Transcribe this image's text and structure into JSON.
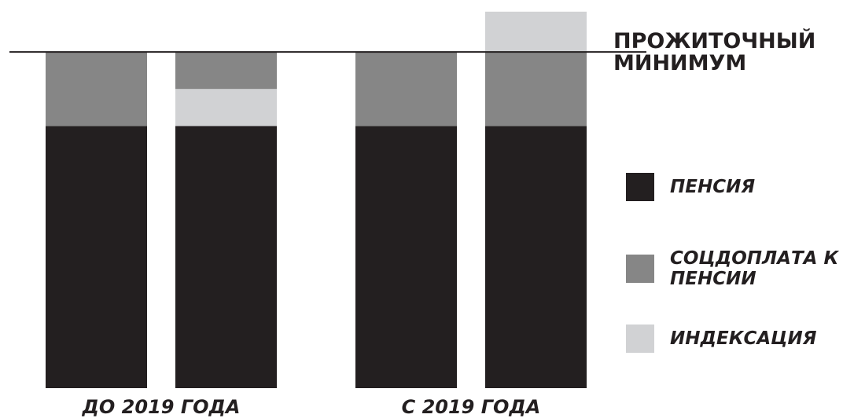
{
  "chart_data": {
    "type": "stacked-bar",
    "categories": [
      "ДО 2019 ГОДА",
      "С 2019 ГОДА"
    ],
    "series": [
      {
        "name": "ПЕНСИЯ",
        "color": "#231f20",
        "values": [
          [
            78,
            78
          ],
          [
            78,
            78
          ]
        ]
      },
      {
        "name": "СОЦДОПЛАТА К ПЕНСИИ",
        "color": "#868686",
        "values": [
          [
            22,
            11
          ],
          [
            22,
            22
          ]
        ]
      },
      {
        "name": "ИНДЕКСАЦИЯ",
        "color": "#d1d2d4",
        "values": [
          [
            null,
            11
          ],
          [
            null,
            12
          ]
        ]
      }
    ],
    "stack_order": [
      [
        [
          0,
          1
        ],
        [
          0,
          2,
          1
        ]
      ],
      [
        [
          0,
          1
        ],
        [
          0,
          1,
          2
        ]
      ]
    ],
    "ylim": [
      0,
      115
    ],
    "reference_line": {
      "value": 100,
      "label": [
        "ПРОЖИТОЧНЫЙ",
        "МИНИМУМ"
      ],
      "color": "#231f20"
    },
    "legend": "right"
  }
}
